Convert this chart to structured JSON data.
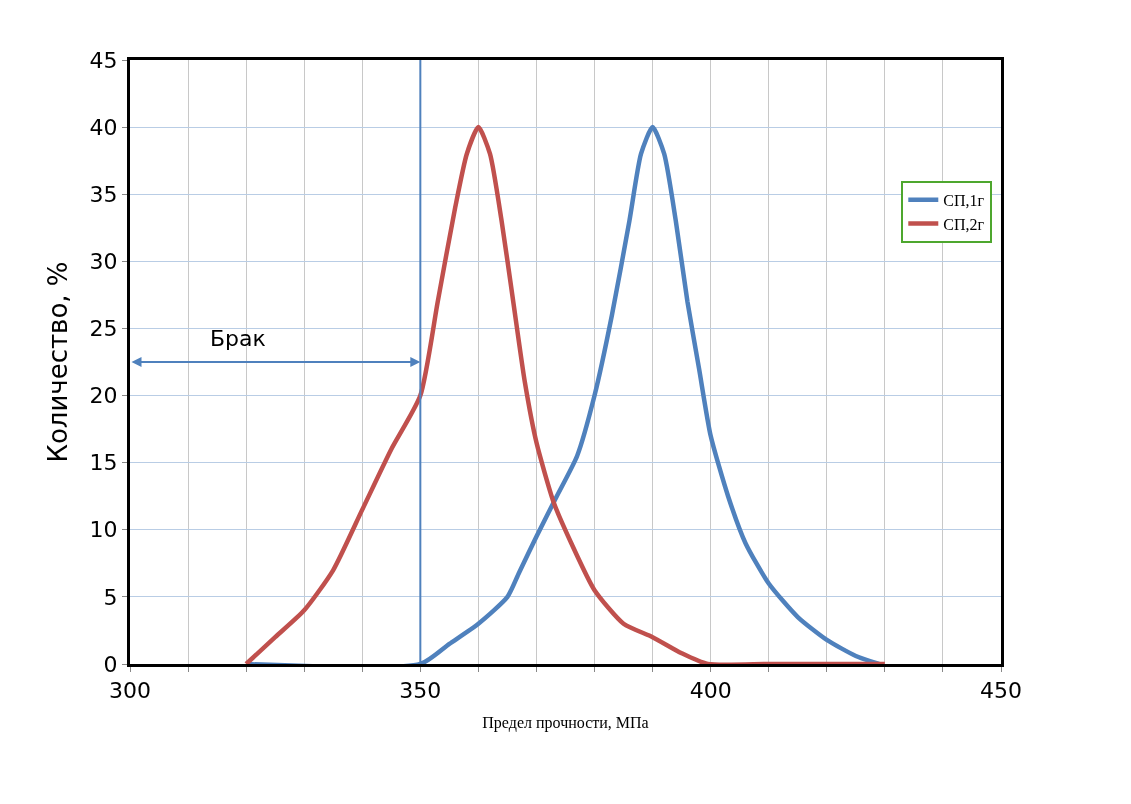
{
  "chart_data": {
    "type": "line",
    "xlabel": "Предел прочности, МПа",
    "ylabel": "Количество, %",
    "xlim": [
      300,
      450
    ],
    "xticks": [
      300,
      {
        "value": 310,
        "label": null
      },
      {
        "value": 320,
        "label": null
      },
      {
        "value": 330,
        "label": null
      },
      {
        "value": 340,
        "label": null
      },
      350,
      {
        "value": 360,
        "label": null
      },
      {
        "value": 370,
        "label": null
      },
      {
        "value": 380,
        "label": null
      },
      {
        "value": 390,
        "label": null
      },
      400,
      {
        "value": 410,
        "label": null
      },
      {
        "value": 420,
        "label": null
      },
      {
        "value": 430,
        "label": null
      },
      {
        "value": 440,
        "label": null
      },
      450
    ],
    "ylim": [
      0,
      45
    ],
    "yticks": [
      0,
      5,
      10,
      15,
      20,
      25,
      30,
      35,
      40,
      45
    ],
    "grid": true,
    "legend": "right",
    "marker": "none",
    "line_style": "solid",
    "series": [
      {
        "name": "СП,1г",
        "color": "#4f81bd",
        "x": [
          320,
          350,
          355,
          360,
          365,
          367,
          370,
          373.5,
          377,
          380,
          383,
          386,
          388,
          390,
          392,
          394,
          396,
          398,
          400,
          403,
          406,
          410,
          415,
          420,
          425,
          429
        ],
        "values": [
          0,
          0,
          1.5,
          3,
          5,
          6.8,
          9.5,
          12.5,
          15.5,
          20,
          26,
          33,
          38,
          40,
          38,
          33,
          27,
          22,
          17,
          12.5,
          9,
          6,
          3.5,
          1.8,
          0.6,
          0
        ]
      },
      {
        "name": "СП,2г",
        "color": "#c0504d",
        "x": [
          320,
          325,
          330,
          335,
          340,
          345,
          350,
          353,
          356,
          358,
          360,
          362,
          364,
          366,
          368,
          370,
          373,
          376,
          380,
          385,
          390,
          395,
          399.5,
          410,
          420,
          430
        ],
        "values": [
          0,
          2,
          4,
          7,
          11.5,
          16,
          20,
          27,
          34,
          38,
          40,
          38,
          33,
          27,
          21,
          16.5,
          12,
          9,
          5.5,
          3,
          2,
          0.8,
          0,
          0,
          0,
          0
        ]
      }
    ],
    "ref_lines": [
      {
        "axis": "x",
        "value": 350,
        "color": "#4f81bd"
      }
    ],
    "annotations": [
      "Брак"
    ]
  }
}
